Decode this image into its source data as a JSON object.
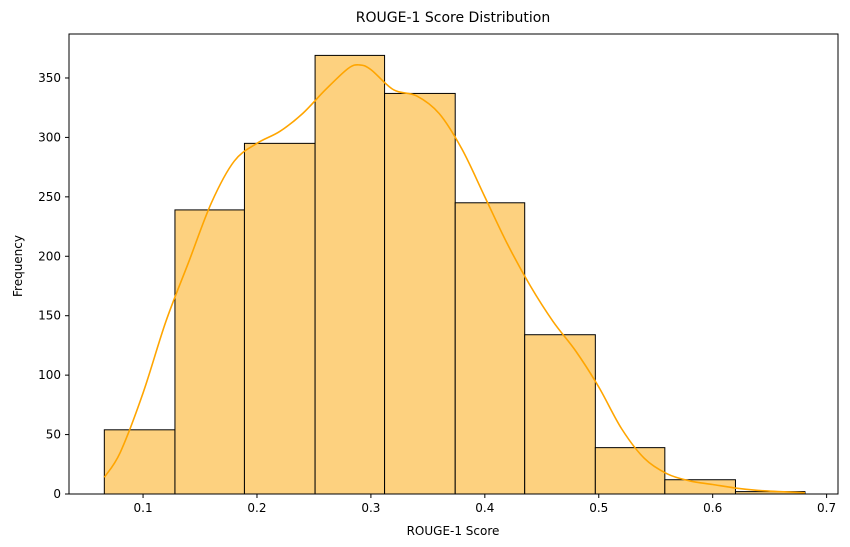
{
  "chart_data": {
    "type": "bar",
    "subtype": "histogram",
    "title": "ROUGE-1 Score Distribution",
    "xlabel": "ROUGE-1 Score",
    "ylabel": "Frequency",
    "xlim": [
      0.035,
      0.71
    ],
    "ylim": [
      0,
      387
    ],
    "xticks": [
      0.1,
      0.2,
      0.3,
      0.4,
      0.5,
      0.6,
      0.7
    ],
    "yticks": [
      0,
      50,
      100,
      150,
      200,
      250,
      300,
      350
    ],
    "bins": [
      {
        "x0": 0.066,
        "x1": 0.128,
        "count": 54
      },
      {
        "x0": 0.128,
        "x1": 0.189,
        "count": 239
      },
      {
        "x0": 0.189,
        "x1": 0.251,
        "count": 295
      },
      {
        "x0": 0.251,
        "x1": 0.312,
        "count": 369
      },
      {
        "x0": 0.312,
        "x1": 0.374,
        "count": 337
      },
      {
        "x0": 0.374,
        "x1": 0.435,
        "count": 245
      },
      {
        "x0": 0.435,
        "x1": 0.497,
        "count": 134
      },
      {
        "x0": 0.497,
        "x1": 0.558,
        "count": 39
      },
      {
        "x0": 0.558,
        "x1": 0.62,
        "count": 12
      },
      {
        "x0": 0.62,
        "x1": 0.681,
        "count": 2
      }
    ],
    "kde": {
      "x": [
        0.066,
        0.08,
        0.1,
        0.12,
        0.14,
        0.16,
        0.18,
        0.2,
        0.22,
        0.24,
        0.26,
        0.28,
        0.29,
        0.3,
        0.32,
        0.34,
        0.36,
        0.38,
        0.4,
        0.42,
        0.44,
        0.46,
        0.48,
        0.5,
        0.52,
        0.54,
        0.56,
        0.58,
        0.6,
        0.62,
        0.64,
        0.66,
        0.681
      ],
      "y": [
        14,
        35,
        85,
        145,
        195,
        245,
        280,
        295,
        305,
        320,
        340,
        358,
        361,
        357,
        340,
        335,
        320,
        290,
        250,
        210,
        175,
        145,
        120,
        90,
        55,
        30,
        17,
        11,
        8,
        5,
        3,
        2,
        1
      ]
    },
    "colors": {
      "bar_fill": "#fdd17f",
      "bar_edge": "#000000",
      "kde_line": "#ffa500"
    },
    "grid": false,
    "legend": "none"
  }
}
